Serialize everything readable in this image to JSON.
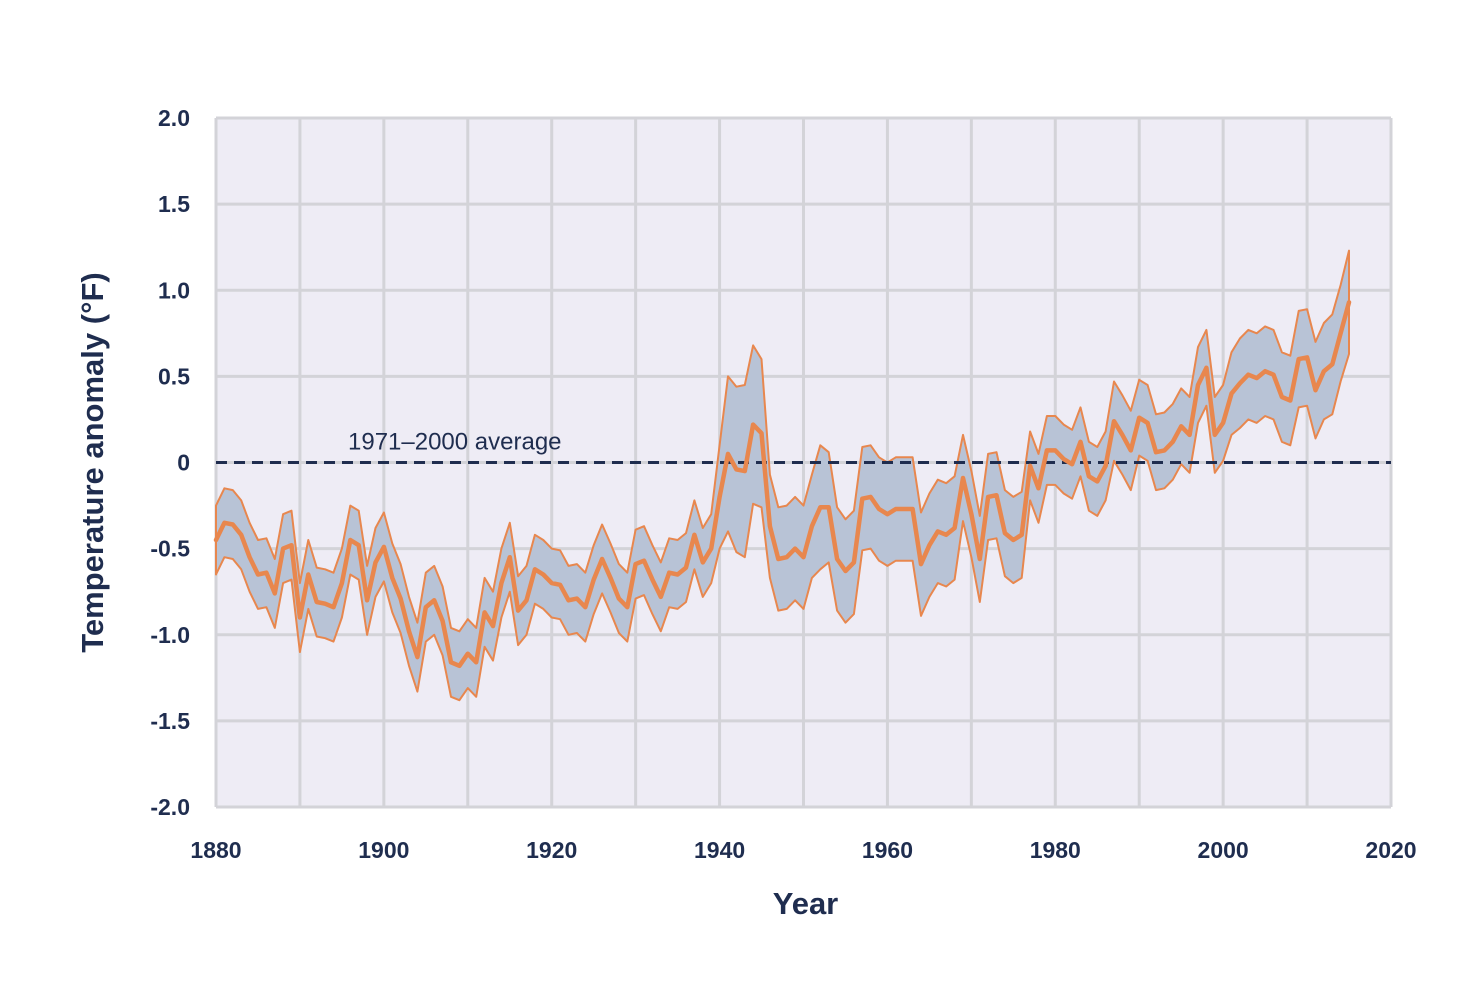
{
  "chart_data": {
    "type": "line",
    "xlabel": "Year",
    "ylabel": "Temperature anomaly (°F)",
    "xlim": [
      1880,
      2020
    ],
    "ylim": [
      -2.0,
      2.0
    ],
    "x_ticks": [
      "1880",
      "1900",
      "1920",
      "1940",
      "1960",
      "1980",
      "2000",
      "2020"
    ],
    "y_ticks": [
      "-2.0",
      "-1.5",
      "-1.0",
      "-0.5",
      "0",
      "0.5",
      "1.0",
      "1.5",
      "2.0"
    ],
    "grid": true,
    "reference_line": {
      "label": "1971–2000 average",
      "value": 0
    },
    "x": [
      1880,
      1881,
      1882,
      1883,
      1884,
      1885,
      1886,
      1887,
      1888,
      1889,
      1890,
      1891,
      1892,
      1893,
      1894,
      1895,
      1896,
      1897,
      1898,
      1899,
      1900,
      1901,
      1902,
      1903,
      1904,
      1905,
      1906,
      1907,
      1908,
      1909,
      1910,
      1911,
      1912,
      1913,
      1914,
      1915,
      1916,
      1917,
      1918,
      1919,
      1920,
      1921,
      1922,
      1923,
      1924,
      1925,
      1926,
      1927,
      1928,
      1929,
      1930,
      1931,
      1932,
      1933,
      1934,
      1935,
      1936,
      1937,
      1938,
      1939,
      1940,
      1941,
      1942,
      1943,
      1944,
      1945,
      1946,
      1947,
      1948,
      1949,
      1950,
      1951,
      1952,
      1953,
      1954,
      1955,
      1956,
      1957,
      1958,
      1959,
      1960,
      1961,
      1962,
      1963,
      1964,
      1965,
      1966,
      1967,
      1968,
      1969,
      1970,
      1971,
      1972,
      1973,
      1974,
      1975,
      1976,
      1977,
      1978,
      1979,
      1980,
      1981,
      1982,
      1983,
      1984,
      1985,
      1986,
      1987,
      1988,
      1989,
      1990,
      1991,
      1992,
      1993,
      1994,
      1995,
      1996,
      1997,
      1998,
      1999,
      2000,
      2001,
      2002,
      2003,
      2004,
      2005,
      2006,
      2007,
      2008,
      2009,
      2010,
      2011,
      2012,
      2013,
      2014,
      2015
    ],
    "series": [
      {
        "role": "anomaly",
        "color": "#e8874e",
        "values": [
          -0.45,
          -0.35,
          -0.36,
          -0.42,
          -0.55,
          -0.65,
          -0.64,
          -0.76,
          -0.5,
          -0.48,
          -0.9,
          -0.65,
          -0.81,
          -0.82,
          -0.84,
          -0.7,
          -0.45,
          -0.48,
          -0.8,
          -0.58,
          -0.49,
          -0.67,
          -0.79,
          -0.98,
          -1.13,
          -0.84,
          -0.8,
          -0.92,
          -1.16,
          -1.18,
          -1.11,
          -1.16,
          -0.87,
          -0.95,
          -0.7,
          -0.55,
          -0.86,
          -0.8,
          -0.62,
          -0.65,
          -0.7,
          -0.71,
          -0.8,
          -0.79,
          -0.84,
          -0.68,
          -0.56,
          -0.67,
          -0.79,
          -0.84,
          -0.59,
          -0.57,
          -0.68,
          -0.78,
          -0.64,
          -0.65,
          -0.61,
          -0.42,
          -0.58,
          -0.5,
          -0.2,
          0.05,
          -0.04,
          -0.05,
          0.22,
          0.17,
          -0.37,
          -0.56,
          -0.55,
          -0.5,
          -0.55,
          -0.37,
          -0.26,
          -0.26,
          -0.56,
          -0.63,
          -0.58,
          -0.21,
          -0.2,
          -0.27,
          -0.3,
          -0.27,
          -0.27,
          -0.27,
          -0.59,
          -0.48,
          -0.4,
          -0.42,
          -0.38,
          -0.09,
          -0.3,
          -0.56,
          -0.2,
          -0.19,
          -0.41,
          -0.45,
          -0.42,
          -0.02,
          -0.15,
          0.07,
          0.07,
          0.02,
          -0.01,
          0.12,
          -0.08,
          -0.11,
          -0.02,
          0.24,
          0.16,
          0.07,
          0.26,
          0.23,
          0.06,
          0.07,
          0.12,
          0.21,
          0.16,
          0.45,
          0.55,
          0.16,
          0.23,
          0.4,
          0.46,
          0.51,
          0.49,
          0.53,
          0.51,
          0.38,
          0.36,
          0.6,
          0.61,
          0.42,
          0.53,
          0.57,
          0.75,
          0.93
        ]
      },
      {
        "role": "upper_bound",
        "values": [
          -0.25,
          -0.15,
          -0.16,
          -0.22,
          -0.35,
          -0.45,
          -0.44,
          -0.56,
          -0.3,
          -0.28,
          -0.7,
          -0.45,
          -0.61,
          -0.62,
          -0.64,
          -0.5,
          -0.25,
          -0.28,
          -0.6,
          -0.38,
          -0.29,
          -0.47,
          -0.59,
          -0.78,
          -0.93,
          -0.64,
          -0.6,
          -0.72,
          -0.96,
          -0.98,
          -0.91,
          -0.96,
          -0.67,
          -0.75,
          -0.5,
          -0.35,
          -0.66,
          -0.6,
          -0.42,
          -0.45,
          -0.5,
          -0.51,
          -0.6,
          -0.59,
          -0.64,
          -0.48,
          -0.36,
          -0.47,
          -0.59,
          -0.64,
          -0.39,
          -0.37,
          -0.48,
          -0.58,
          -0.44,
          -0.45,
          -0.41,
          -0.22,
          -0.38,
          -0.3,
          0.1,
          0.5,
          0.44,
          0.45,
          0.68,
          0.6,
          -0.07,
          -0.26,
          -0.25,
          -0.2,
          -0.25,
          -0.07,
          0.1,
          0.06,
          -0.26,
          -0.33,
          -0.28,
          0.09,
          0.1,
          0.03,
          0.0,
          0.03,
          0.03,
          0.03,
          -0.29,
          -0.18,
          -0.1,
          -0.12,
          -0.08,
          0.16,
          -0.05,
          -0.31,
          0.05,
          0.06,
          -0.16,
          -0.2,
          -0.17,
          0.18,
          0.05,
          0.27,
          0.27,
          0.22,
          0.19,
          0.32,
          0.12,
          0.09,
          0.18,
          0.47,
          0.39,
          0.3,
          0.48,
          0.45,
          0.28,
          0.29,
          0.34,
          0.43,
          0.38,
          0.67,
          0.77,
          0.38,
          0.45,
          0.64,
          0.72,
          0.77,
          0.75,
          0.79,
          0.77,
          0.64,
          0.62,
          0.88,
          0.89,
          0.7,
          0.81,
          0.86,
          1.03,
          1.23
        ]
      },
      {
        "role": "lower_bound",
        "values": [
          -0.65,
          -0.55,
          -0.56,
          -0.62,
          -0.75,
          -0.85,
          -0.84,
          -0.96,
          -0.7,
          -0.68,
          -1.1,
          -0.85,
          -1.01,
          -1.02,
          -1.04,
          -0.9,
          -0.65,
          -0.68,
          -1.0,
          -0.78,
          -0.69,
          -0.87,
          -0.99,
          -1.18,
          -1.33,
          -1.04,
          -1.0,
          -1.12,
          -1.36,
          -1.38,
          -1.31,
          -1.36,
          -1.07,
          -1.15,
          -0.9,
          -0.75,
          -1.06,
          -1.0,
          -0.82,
          -0.85,
          -0.9,
          -0.91,
          -1.0,
          -0.99,
          -1.04,
          -0.88,
          -0.76,
          -0.87,
          -0.99,
          -1.04,
          -0.79,
          -0.77,
          -0.88,
          -0.98,
          -0.84,
          -0.85,
          -0.81,
          -0.62,
          -0.78,
          -0.7,
          -0.5,
          -0.4,
          -0.52,
          -0.55,
          -0.24,
          -0.26,
          -0.67,
          -0.86,
          -0.85,
          -0.8,
          -0.85,
          -0.67,
          -0.62,
          -0.58,
          -0.86,
          -0.93,
          -0.88,
          -0.51,
          -0.5,
          -0.57,
          -0.6,
          -0.57,
          -0.57,
          -0.57,
          -0.89,
          -0.78,
          -0.7,
          -0.72,
          -0.68,
          -0.34,
          -0.55,
          -0.81,
          -0.45,
          -0.44,
          -0.66,
          -0.7,
          -0.67,
          -0.22,
          -0.35,
          -0.13,
          -0.13,
          -0.18,
          -0.21,
          -0.08,
          -0.28,
          -0.31,
          -0.22,
          0.01,
          -0.07,
          -0.16,
          0.04,
          0.01,
          -0.16,
          -0.15,
          -0.1,
          -0.01,
          -0.06,
          0.23,
          0.33,
          -0.06,
          0.01,
          0.16,
          0.2,
          0.25,
          0.23,
          0.27,
          0.25,
          0.12,
          0.1,
          0.32,
          0.33,
          0.14,
          0.25,
          0.28,
          0.47,
          0.63
        ]
      }
    ]
  }
}
